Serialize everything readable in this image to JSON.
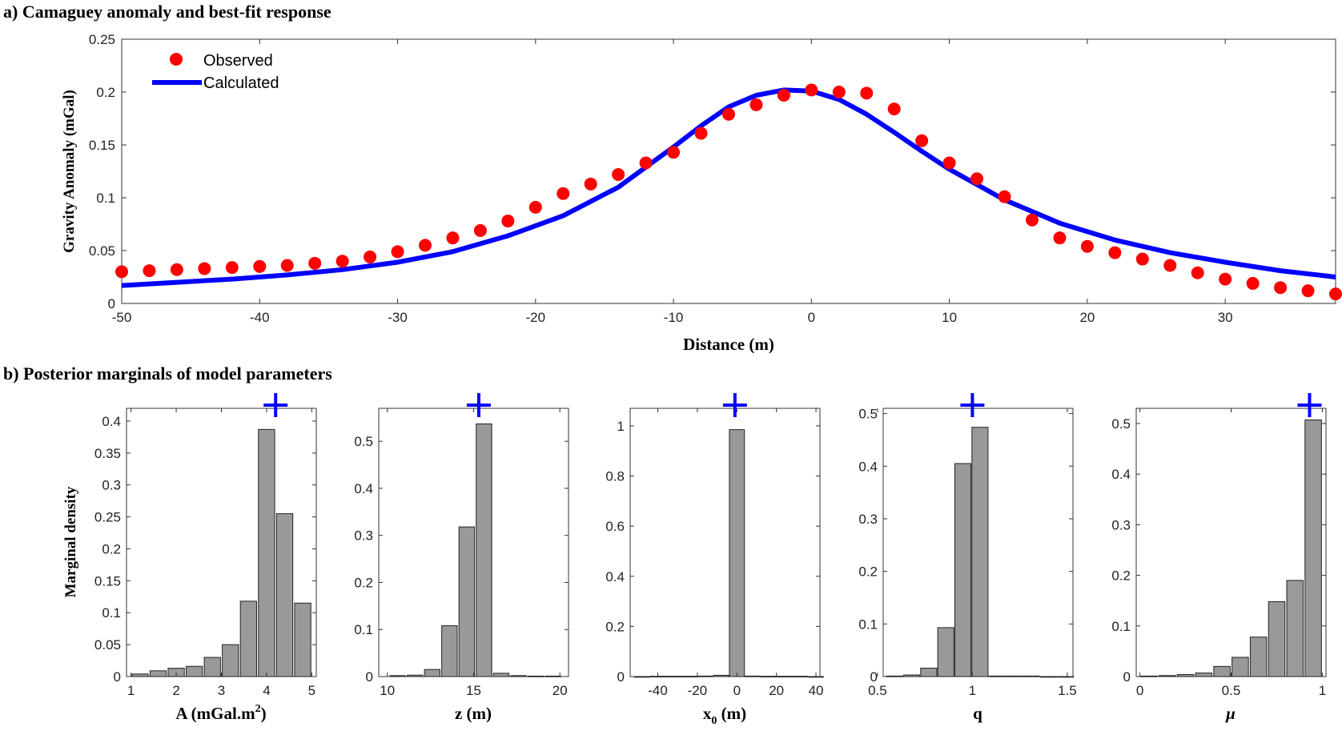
{
  "chart_data": [
    {
      "type": "scatter",
      "title": "a) Camaguey anomaly and best-fit response",
      "xlabel": "Distance (m)",
      "ylabel": "Gravity Anomaly (mGal)",
      "xlim": [
        -50,
        38
      ],
      "ylim": [
        0,
        0.25
      ],
      "xticks": [
        -50,
        -40,
        -30,
        -20,
        -10,
        0,
        10,
        20,
        30
      ],
      "yticks": [
        "0",
        "0.05",
        "0.1",
        "0.15",
        "0.2",
        "0.25"
      ],
      "legend_position": "top-left",
      "series": [
        {
          "name": "Observed",
          "kind": "markers",
          "color": "#ff0000",
          "x": [
            -50,
            -48,
            -46,
            -44,
            -42,
            -40,
            -38,
            -36,
            -34,
            -32,
            -30,
            -28,
            -26,
            -24,
            -22,
            -20,
            -18,
            -16,
            -14,
            -12,
            -10,
            -8,
            -6,
            -4,
            -2,
            0,
            2,
            4,
            6,
            8,
            10,
            12,
            14,
            16,
            18,
            20,
            22,
            24,
            26,
            28,
            30,
            32,
            34,
            36,
            38
          ],
          "y": [
            0.03,
            0.031,
            0.032,
            0.033,
            0.034,
            0.035,
            0.036,
            0.038,
            0.04,
            0.044,
            0.049,
            0.055,
            0.062,
            0.069,
            0.078,
            0.091,
            0.104,
            0.113,
            0.122,
            0.133,
            0.143,
            0.161,
            0.179,
            0.188,
            0.197,
            0.202,
            0.2,
            0.199,
            0.184,
            0.154,
            0.133,
            0.118,
            0.101,
            0.079,
            0.062,
            0.054,
            0.048,
            0.042,
            0.036,
            0.029,
            0.023,
            0.019,
            0.015,
            0.012,
            0.009
          ]
        },
        {
          "name": "Calculated",
          "kind": "line",
          "color": "#0000ff",
          "x": [
            -50,
            -46,
            -42,
            -38,
            -34,
            -30,
            -26,
            -22,
            -18,
            -14,
            -10,
            -8,
            -6,
            -4,
            -2,
            0,
            2,
            4,
            6,
            8,
            10,
            14,
            18,
            22,
            26,
            30,
            34,
            38
          ],
          "y": [
            0.017,
            0.02,
            0.023,
            0.027,
            0.032,
            0.039,
            0.049,
            0.064,
            0.083,
            0.11,
            0.148,
            0.168,
            0.186,
            0.197,
            0.202,
            0.201,
            0.193,
            0.179,
            0.162,
            0.144,
            0.127,
            0.098,
            0.076,
            0.06,
            0.048,
            0.039,
            0.031,
            0.025
          ]
        }
      ]
    },
    {
      "type": "bar",
      "title": "b) Posterior marginals of model parameters",
      "ylabel": "Marginal density",
      "xlabel": "A (mGal.m²)",
      "xlabel_main": "A (mGal.m",
      "xlabel_sup": "2",
      "xlabel_close": ")",
      "xlim": [
        0.9,
        5.1
      ],
      "ylim": [
        0,
        0.42
      ],
      "xticks": [
        1,
        2,
        3,
        4,
        5
      ],
      "yticks": [
        "0",
        "0.05",
        "0.1",
        "0.15",
        "0.2",
        "0.25",
        "0.3",
        "0.35",
        "0.4"
      ],
      "bar_width": 0.36,
      "bar_color": "#999999",
      "marker": {
        "symbol": "+",
        "x": 4.2,
        "color": "#0000ff"
      },
      "x": [
        1.2,
        1.6,
        2.0,
        2.4,
        2.8,
        3.2,
        3.6,
        4.0,
        4.4,
        4.8
      ],
      "values": [
        0.004,
        0.009,
        0.013,
        0.016,
        0.03,
        0.05,
        0.118,
        0.387,
        0.255,
        0.115
      ]
    },
    {
      "type": "bar",
      "xlabel": "z (m)",
      "xlim": [
        9.5,
        20.5
      ],
      "ylim": [
        0,
        0.57
      ],
      "xticks": [
        10,
        15,
        20
      ],
      "yticks": [
        "0",
        "0.1",
        "0.2",
        "0.3",
        "0.4",
        "0.5"
      ],
      "bar_width": 0.9,
      "bar_color": "#999999",
      "marker": {
        "symbol": "+",
        "x": 15.3,
        "color": "#0000ff"
      },
      "x": [
        10.6,
        11.6,
        12.6,
        13.6,
        14.6,
        15.6,
        16.6,
        17.6,
        18.6,
        19.6
      ],
      "values": [
        0.002,
        0.003,
        0.015,
        0.108,
        0.318,
        0.537,
        0.007,
        0.002,
        0.001,
        0.001
      ]
    },
    {
      "type": "bar",
      "xlabel": "x₀ (m)",
      "xlabel_main": "x",
      "xlabel_sub": "0",
      "xlabel_close": " (m)",
      "xlim": [
        -54,
        42
      ],
      "ylim": [
        0,
        1.07
      ],
      "xticks": [
        -40,
        -20,
        0,
        20,
        40
      ],
      "yticks": [
        "0",
        "0.2",
        "0.4",
        "0.6",
        "0.8",
        "1"
      ],
      "bar_width": 7.6,
      "bar_color": "#999999",
      "marker": {
        "symbol": "+",
        "x": -1,
        "color": "#0000ff"
      },
      "x": [
        -48,
        -40,
        -32,
        -24,
        -16,
        -8,
        0,
        8,
        16,
        24,
        32,
        40
      ],
      "values": [
        0.0,
        0.001,
        0.001,
        0.001,
        0.002,
        0.005,
        0.985,
        0.002,
        0.001,
        0.001,
        0.001,
        0.0
      ]
    },
    {
      "type": "bar",
      "xlabel": "q",
      "xlim": [
        0.53,
        1.53
      ],
      "ylim": [
        0,
        0.51
      ],
      "xticks": [
        "0.5",
        "1",
        "1.5"
      ],
      "xtick_values": [
        0.5,
        1,
        1.5
      ],
      "bar_width": 0.085,
      "bar_color": "#999999",
      "marker": {
        "symbol": "+",
        "x": 1.0,
        "color": "#0000ff"
      },
      "yticks": [
        "0",
        "0.1",
        "0.2",
        "0.3",
        "0.4",
        "0.5"
      ],
      "x": [
        0.59,
        0.68,
        0.77,
        0.86,
        0.95,
        1.04,
        1.13,
        1.22,
        1.31,
        1.4,
        1.49
      ],
      "values": [
        0.001,
        0.003,
        0.016,
        0.093,
        0.405,
        0.474,
        0.001,
        0.001,
        0.001,
        0.0,
        0.0
      ]
    },
    {
      "type": "bar",
      "xlabel": "μ",
      "xlim": [
        -0.02,
        1.02
      ],
      "ylim": [
        0,
        0.53
      ],
      "xticks": [
        "0",
        "0.5",
        "1"
      ],
      "xtick_values": [
        0,
        0.5,
        1
      ],
      "bar_width": 0.09,
      "bar_color": "#999999",
      "marker": {
        "symbol": "+",
        "x": 0.93,
        "color": "#0000ff"
      },
      "yticks": [
        "0",
        "0.1",
        "0.2",
        "0.3",
        "0.4",
        "0.5"
      ],
      "x": [
        0.05,
        0.15,
        0.25,
        0.35,
        0.45,
        0.55,
        0.65,
        0.75,
        0.85,
        0.95
      ],
      "values": [
        0.001,
        0.002,
        0.004,
        0.007,
        0.02,
        0.038,
        0.078,
        0.148,
        0.19,
        0.507
      ]
    }
  ]
}
